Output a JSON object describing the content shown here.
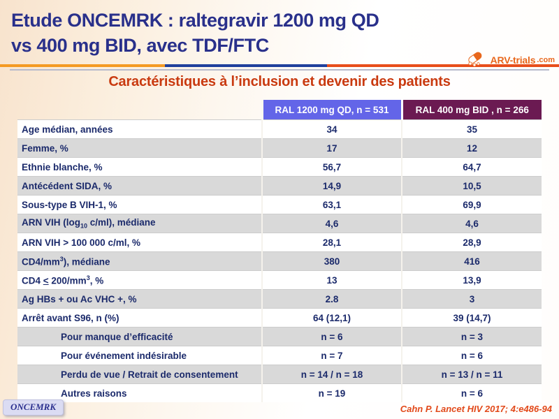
{
  "header": {
    "title_line1": "Etude ONCEMRK : raltegravir 1200 mg QD",
    "title_line2": "vs 400 mg BID, avec TDF/FTC",
    "subtitle": "Caractéristiques à l’inclusion et devenir des patients",
    "logo_main": "ARV-trials",
    "logo_suffix": ".com",
    "logo_icon": "pill-capsule-icon"
  },
  "table": {
    "columns": [
      "",
      "RAL 1200 mg QD, n = 531",
      "RAL 400 mg BID , n = 266"
    ],
    "rows": [
      {
        "label_parts": [
          {
            "t": "Age médian, années"
          }
        ],
        "values": [
          "34",
          "35"
        ],
        "indent": false
      },
      {
        "label_parts": [
          {
            "t": "Femme, %"
          }
        ],
        "values": [
          "17",
          "12"
        ],
        "indent": false
      },
      {
        "label_parts": [
          {
            "t": "Ethnie blanche, %"
          }
        ],
        "values": [
          "56,7",
          "64,7"
        ],
        "indent": false
      },
      {
        "label_parts": [
          {
            "t": "Antécédent SIDA, %"
          }
        ],
        "values": [
          "14,9",
          "10,5"
        ],
        "indent": false
      },
      {
        "label_parts": [
          {
            "t": "Sous-type B VIH-1, %"
          }
        ],
        "values": [
          "63,1",
          "69,9"
        ],
        "indent": false
      },
      {
        "label_parts": [
          {
            "t": "ARN VIH (log"
          },
          {
            "t": "10",
            "sub": true
          },
          {
            "t": " c/ml), médiane"
          }
        ],
        "values": [
          "4,6",
          "4,6"
        ],
        "indent": false
      },
      {
        "label_parts": [
          {
            "t": "ARN VIH > 100 000 c/ml, %"
          }
        ],
        "values": [
          "28,1",
          "28,9"
        ],
        "indent": false
      },
      {
        "label_parts": [
          {
            "t": "CD4/mm"
          },
          {
            "t": "3",
            "sup": true
          },
          {
            "t": "), médiane"
          }
        ],
        "values": [
          "380",
          "416"
        ],
        "indent": false
      },
      {
        "label_parts": [
          {
            "t": "CD4 "
          },
          {
            "t": "<",
            "u": true
          },
          {
            "t": " 200/mm"
          },
          {
            "t": "3",
            "sup": true
          },
          {
            "t": ", %"
          }
        ],
        "values": [
          "13",
          "13,9"
        ],
        "indent": false
      },
      {
        "label_parts": [
          {
            "t": "Ag HBs + ou Ac VHC +, %"
          }
        ],
        "values": [
          "2.8",
          "3"
        ],
        "indent": false
      },
      {
        "label_parts": [
          {
            "t": "Arrêt avant S96, n (%)"
          }
        ],
        "values": [
          "64 (12,1)",
          "39 (14,7)"
        ],
        "indent": false
      },
      {
        "label_parts": [
          {
            "t": "Pour manque d’efficacité"
          }
        ],
        "values": [
          "n = 6",
          "n = 3"
        ],
        "indent": true
      },
      {
        "label_parts": [
          {
            "t": "Pour événement indésirable"
          }
        ],
        "values": [
          "n = 7",
          "n = 6"
        ],
        "indent": true
      },
      {
        "label_parts": [
          {
            "t": "Perdu de vue / Retrait de consentement"
          }
        ],
        "values": [
          "n = 14 / n = 18",
          "n = 13 / n = 11"
        ],
        "indent": true
      },
      {
        "label_parts": [
          {
            "t": "Autres raisons"
          }
        ],
        "values": [
          "n = 19",
          "n = 6"
        ],
        "indent": true
      }
    ]
  },
  "footer": {
    "badge": "ONCEMRK",
    "citation": "Cahn P. Lancet HIV 2017; 4:e486-94"
  },
  "colors": {
    "title_navy": "#29308b",
    "accent_red": "#c93a10",
    "header_qd_bg": "#6365e8",
    "header_bid_bg": "#6b1a52",
    "table_text_navy": "#1b2a6b",
    "row_alt_gray": "#d9d9d9",
    "divider_orange": "#f49a23",
    "divider_blue": "#20409c",
    "divider_red": "#e84e1b",
    "logo_orange": "#e8671c"
  }
}
